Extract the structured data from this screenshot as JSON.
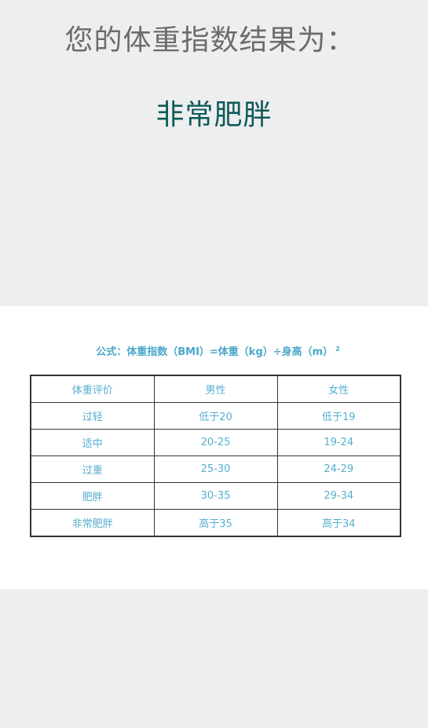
{
  "result": {
    "heading": "您的体重指数结果为：",
    "value": "非常肥胖"
  },
  "image": {
    "formula_text": "公式：体重指数（BMI）=体重（kg）÷身高（m）",
    "formula_superscript": "2",
    "table": {
      "headers": [
        "体重评价",
        "男性",
        "女性"
      ],
      "rows": [
        [
          "过轻",
          "低于20",
          "低于19"
        ],
        [
          "适中",
          "20-25",
          "19-24"
        ],
        [
          "过重",
          "25-30",
          "24-29"
        ],
        [
          "肥胖",
          "30-35",
          "29-34"
        ],
        [
          "非常肥胖",
          "高于35",
          "高于34"
        ]
      ]
    }
  },
  "colors": {
    "background": "#eeeeee",
    "heading_text": "#6b6b6b",
    "result_text": "#0e5a5a",
    "table_text": "#57aed0",
    "table_border": "#333333"
  }
}
